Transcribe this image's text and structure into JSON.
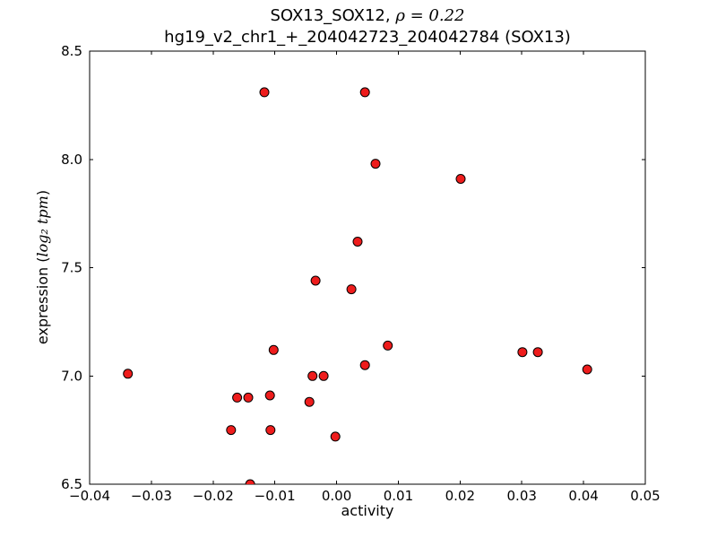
{
  "titles": {
    "line1_main": "SOX13_SOX12, ",
    "line1_math": "ρ = 0.22",
    "line2": "hg19_v2_chr1_+_204042723_204042784 (SOX13)"
  },
  "axes": {
    "xlabel": "activity",
    "ylabel_prefix": "expression (",
    "ylabel_math": "log₂ tpm",
    "ylabel_suffix": ")"
  },
  "chart_data": {
    "type": "scatter",
    "title": "SOX13_SOX12, ρ = 0.22",
    "subtitle": "hg19_v2_chr1_+_204042723_204042784 (SOX13)",
    "xlabel": "activity",
    "ylabel": "expression (log₂ tpm)",
    "xlim": [
      -0.04,
      0.05
    ],
    "ylim": [
      6.5,
      8.5
    ],
    "x_ticks": [
      -0.04,
      -0.03,
      -0.02,
      -0.01,
      0.0,
      0.01,
      0.02,
      0.03,
      0.04,
      0.05
    ],
    "x_tick_labels": [
      "−0.04",
      "−0.03",
      "−0.02",
      "−0.01",
      "0.00",
      "0.01",
      "0.02",
      "0.03",
      "0.04",
      "0.05"
    ],
    "y_ticks": [
      6.5,
      7.0,
      7.5,
      8.0,
      8.5
    ],
    "y_tick_labels": [
      "6.5",
      "7.0",
      "7.5",
      "8.0",
      "8.5"
    ],
    "grid": false,
    "legend": null,
    "marker": {
      "shape": "circle",
      "color": "#ee1c1c",
      "edge_color": "#000000",
      "radius_px": 5
    },
    "points": [
      [
        -0.0338,
        7.01
      ],
      [
        -0.0171,
        6.75
      ],
      [
        -0.0161,
        6.9
      ],
      [
        -0.0143,
        6.9
      ],
      [
        -0.014,
        6.5
      ],
      [
        -0.0117,
        8.31
      ],
      [
        -0.0108,
        6.91
      ],
      [
        -0.0107,
        6.75
      ],
      [
        -0.0102,
        7.12
      ],
      [
        -0.0044,
        6.88
      ],
      [
        -0.0039,
        7.0
      ],
      [
        -0.0034,
        7.44
      ],
      [
        -0.0021,
        7.0
      ],
      [
        -0.0002,
        6.72
      ],
      [
        0.0024,
        7.4
      ],
      [
        0.0034,
        7.62
      ],
      [
        0.0046,
        8.31
      ],
      [
        0.0046,
        7.05
      ],
      [
        0.0063,
        7.98
      ],
      [
        0.0083,
        7.14
      ],
      [
        0.0201,
        7.91
      ],
      [
        0.0301,
        7.11
      ],
      [
        0.0326,
        7.11
      ],
      [
        0.0406,
        7.03
      ]
    ]
  }
}
